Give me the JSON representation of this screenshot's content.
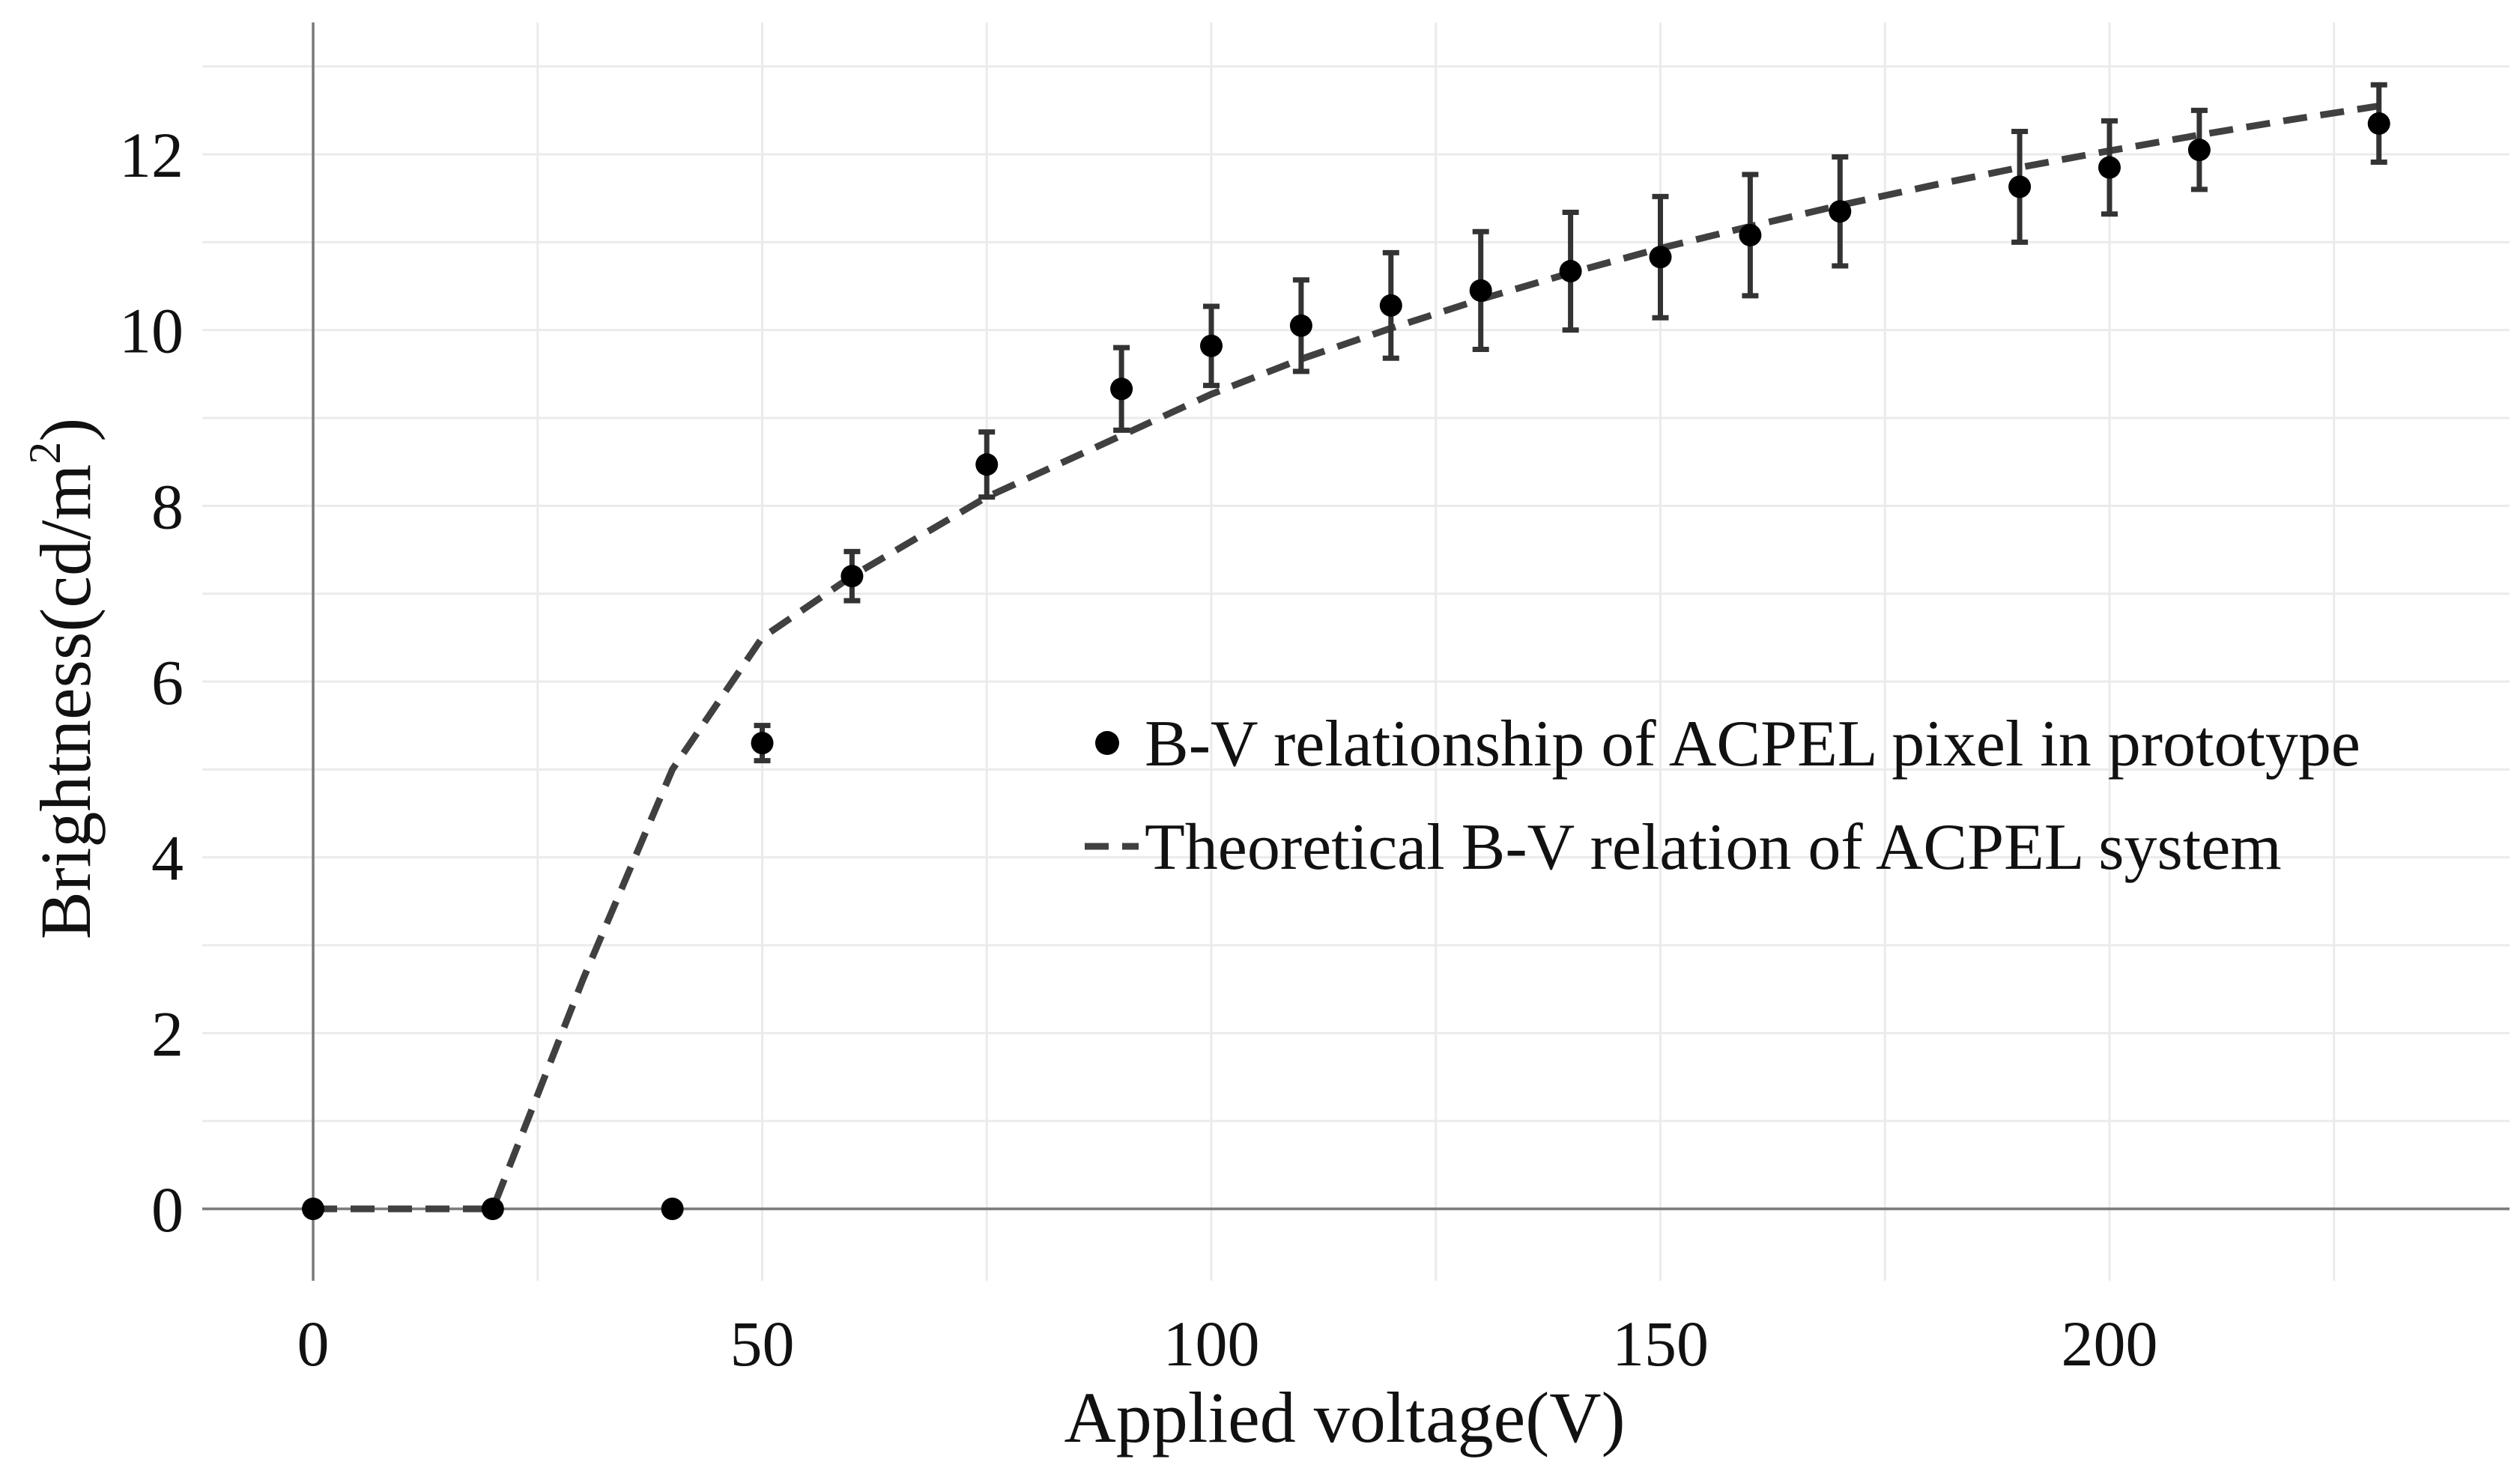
{
  "chart_data": {
    "type": "scatter",
    "title": "",
    "xlabel": "Applied voltage(V)",
    "ylabel_main": "Brightness(cd/m",
    "ylabel_sup": "2",
    "ylabel_end": ")",
    "xlim": [
      -14,
      244
    ],
    "ylim": [
      -0.8,
      13.5
    ],
    "x_ticks": [
      0,
      50,
      100,
      150,
      200
    ],
    "y_ticks": [
      0,
      2,
      4,
      6,
      8,
      10,
      12
    ],
    "grid": true,
    "legend_position": "center-right",
    "series": [
      {
        "name": "B-V relationship of ACPEL pixel in prototype",
        "kind": "points_with_error_bars",
        "color": "#000000",
        "points": [
          {
            "x": 0,
            "y": 0,
            "err": 0
          },
          {
            "x": 20,
            "y": 0,
            "err": 0
          },
          {
            "x": 40,
            "y": 0,
            "err": 0
          },
          {
            "x": 50,
            "y": 5.3,
            "err": 0.2
          },
          {
            "x": 60,
            "y": 7.2,
            "err": 0.28
          },
          {
            "x": 75,
            "y": 8.47,
            "err": 0.37
          },
          {
            "x": 90,
            "y": 9.33,
            "err": 0.47
          },
          {
            "x": 100,
            "y": 9.82,
            "err": 0.45
          },
          {
            "x": 110,
            "y": 10.05,
            "err": 0.52
          },
          {
            "x": 120,
            "y": 10.28,
            "err": 0.6
          },
          {
            "x": 130,
            "y": 10.45,
            "err": 0.67
          },
          {
            "x": 140,
            "y": 10.67,
            "err": 0.67
          },
          {
            "x": 150,
            "y": 10.83,
            "err": 0.69
          },
          {
            "x": 160,
            "y": 11.08,
            "err": 0.69
          },
          {
            "x": 170,
            "y": 11.35,
            "err": 0.62
          },
          {
            "x": 190,
            "y": 11.63,
            "err": 0.63
          },
          {
            "x": 200,
            "y": 11.85,
            "err": 0.53
          },
          {
            "x": 210,
            "y": 12.05,
            "err": 0.45
          },
          {
            "x": 230,
            "y": 12.35,
            "err": 0.44
          }
        ]
      },
      {
        "name": "Theoretical B-V relation of ACPEL system",
        "kind": "dashed_line",
        "color": "#404040",
        "x": [
          0,
          20,
          30,
          40,
          50,
          60,
          75,
          90,
          100,
          110,
          120,
          130,
          140,
          150,
          160,
          170,
          180,
          190,
          200,
          210,
          220,
          230
        ],
        "y": [
          0,
          0,
          2.6,
          5.0,
          6.5,
          7.2,
          8.1,
          8.8,
          9.27,
          9.67,
          10.02,
          10.35,
          10.65,
          10.93,
          11.18,
          11.42,
          11.64,
          11.85,
          12.04,
          12.22,
          12.39,
          12.55
        ]
      }
    ]
  }
}
